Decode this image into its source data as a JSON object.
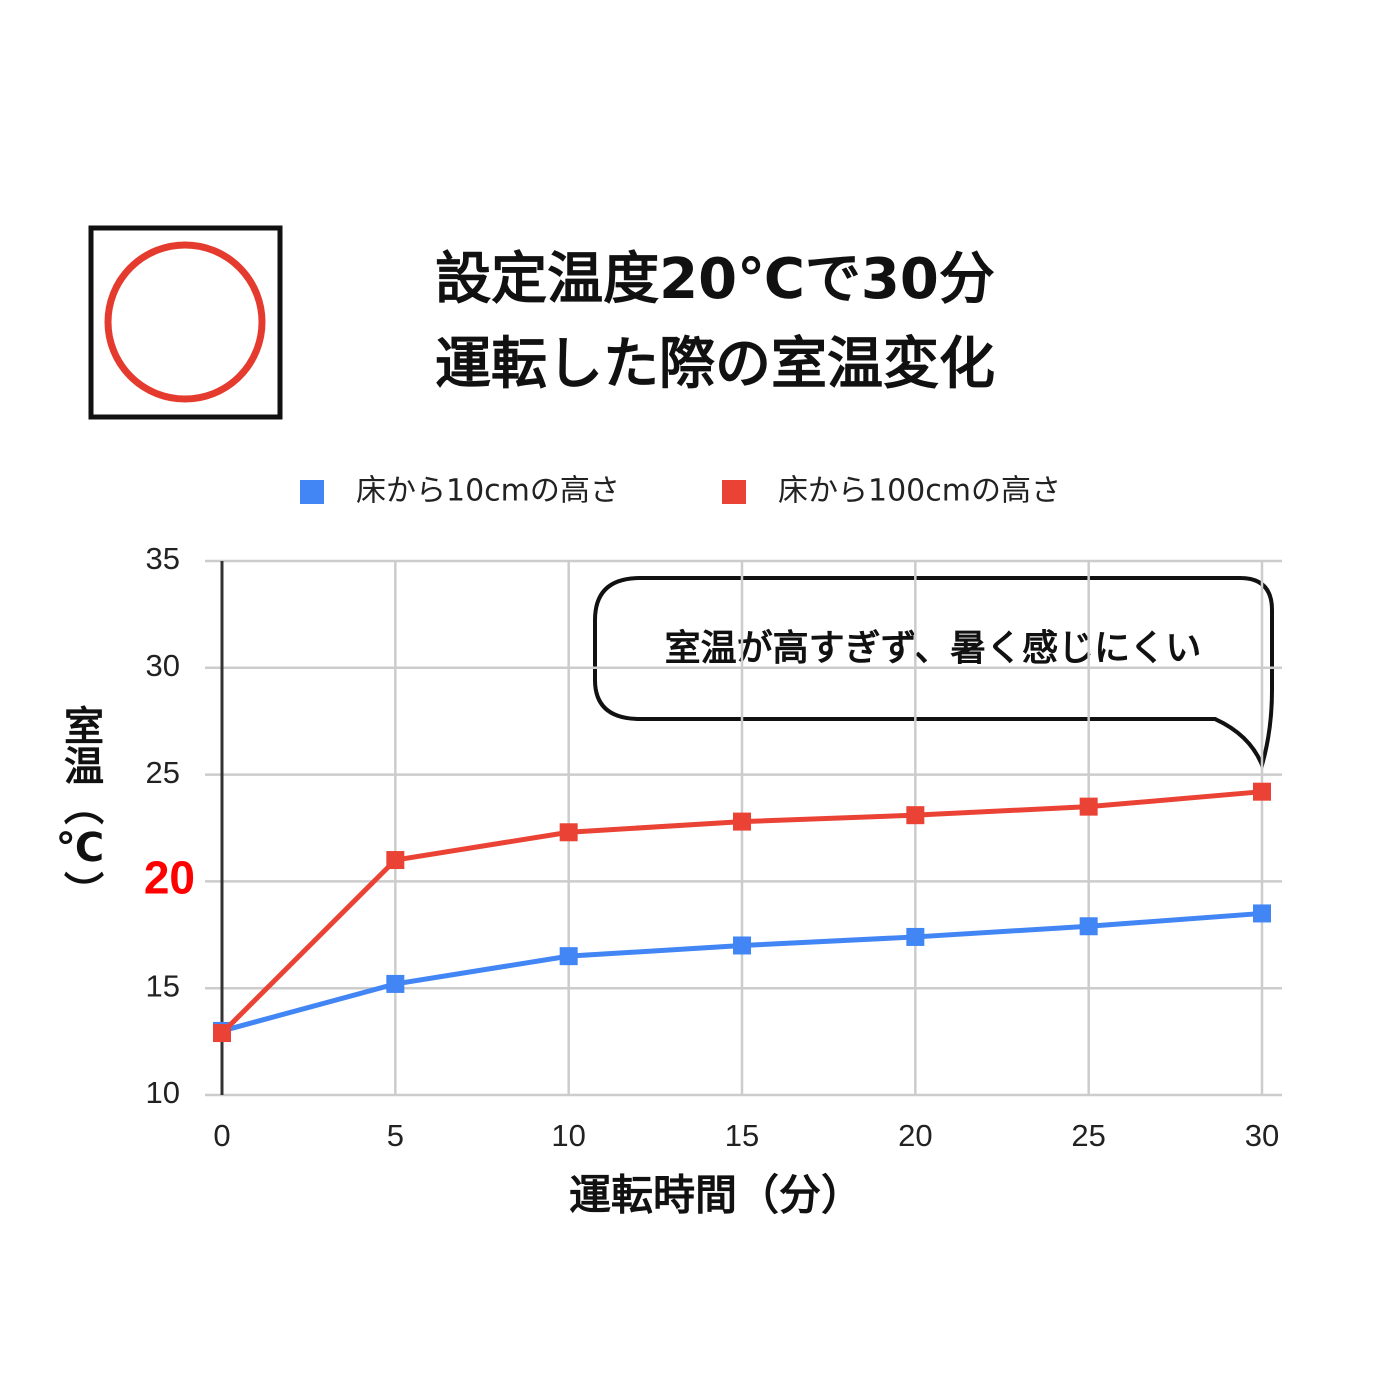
{
  "chart_data": {
    "type": "line",
    "title_lines": [
      "設定温度20℃で30分",
      "運転した際の室温変化"
    ],
    "x": [
      0,
      5,
      10,
      15,
      20,
      25,
      30
    ],
    "series": [
      {
        "name": "床から10cmの高さ",
        "color": "#4285f4",
        "values": [
          13.0,
          15.2,
          16.5,
          17.0,
          17.4,
          17.9,
          18.5
        ]
      },
      {
        "name": "床から100cmの高さ",
        "color": "#ea4335",
        "values": [
          12.9,
          21.0,
          22.3,
          22.8,
          23.1,
          23.5,
          24.2
        ]
      }
    ],
    "xlim": [
      0,
      30
    ],
    "xticks": [
      0,
      5,
      10,
      15,
      20,
      25,
      30
    ],
    "ylim": [
      10,
      35
    ],
    "yticks": [
      10,
      15,
      20,
      25,
      30,
      35
    ],
    "highlighted_ytick": 20,
    "highlight_color": "#ff0000",
    "xlabel": "運転時間（分）",
    "ylabel": "室温（℃）",
    "annotation": "室温が高すぎず、暑く感じにくい",
    "grid": true
  }
}
